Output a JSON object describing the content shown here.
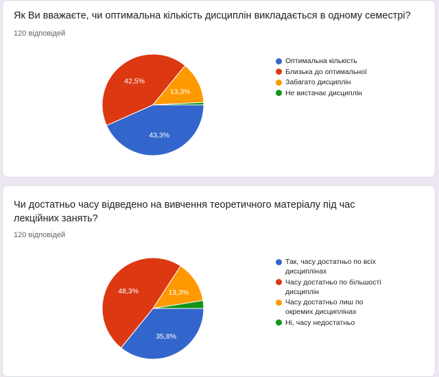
{
  "colors": [
    "#3366cc",
    "#dc3912",
    "#ff9900",
    "#109618"
  ],
  "chart_data": [
    {
      "type": "pie",
      "title": "Як Ви вважаєте, чи оптимальна кількість дисциплін викладається в одному семестрі?",
      "responses": "120 відповідей",
      "categories": [
        "Оптимальна кількість",
        "Близька до оптимальної",
        "Забагато дисциплін",
        "Не вистачає дисциплін"
      ],
      "values": [
        43.3,
        42.5,
        13.3,
        0.8
      ],
      "labels": [
        "43,3%",
        "42,5%",
        "13,3%",
        ""
      ],
      "legend": "right"
    },
    {
      "type": "pie",
      "title": "Чи достатньо часу відведено на вивчення теоретичного матеріалу під час лекційних занять?",
      "responses": "120 відповідей",
      "categories": [
        "Так, часу достатньо по всіх дисциплінах",
        "Часу достатньо по більшості дисциплін",
        "Часу достатньо лиш по окремих дисциплінах",
        "Ні, часу недостатньо"
      ],
      "values": [
        35.8,
        48.3,
        13.3,
        2.5
      ],
      "labels": [
        "35,8%",
        "48,3%",
        "13,3%",
        ""
      ],
      "legend": "right"
    }
  ]
}
